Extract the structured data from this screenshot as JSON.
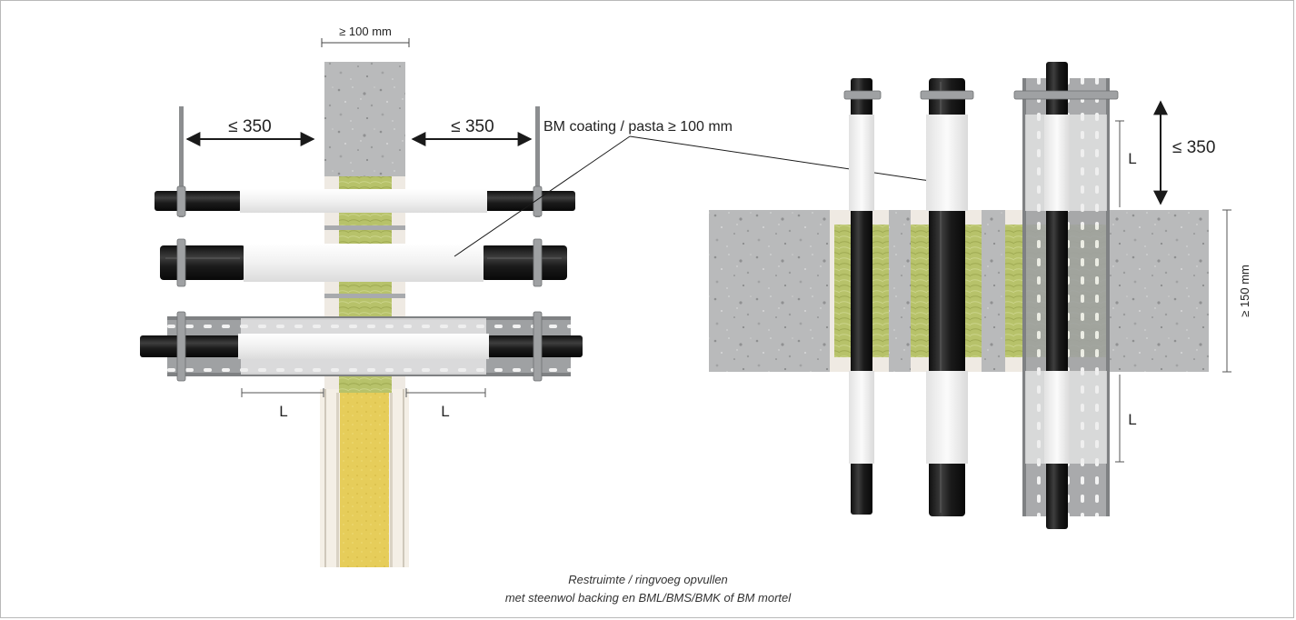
{
  "labels": {
    "wall_thickness": "≥ 100 mm",
    "left_spacing_left": "≤ 350",
    "left_spacing_right": "≤ 350",
    "coating_callout": "BM coating / pasta ≥ 100 mm",
    "length_left": "L",
    "length_right": "L",
    "floor_spacing": "≤ 350",
    "floor_length_top": "L",
    "floor_length_bottom": "L",
    "floor_thickness": "≥ 150 mm"
  },
  "caption": {
    "line1": "Restruimte / ringvoeg opvullen",
    "line2": "met steenwol backing en BML/BMS/BMK of BM mortel"
  },
  "colors": {
    "concrete": "#b8b9ba",
    "mineral_wool": "#b9c46a",
    "backing_yellow": "#e8cf58",
    "cable_black": "#232323",
    "coating_white": "#f3f3f3",
    "steel": "#a9abad",
    "arrow": "#1a1a1a"
  }
}
